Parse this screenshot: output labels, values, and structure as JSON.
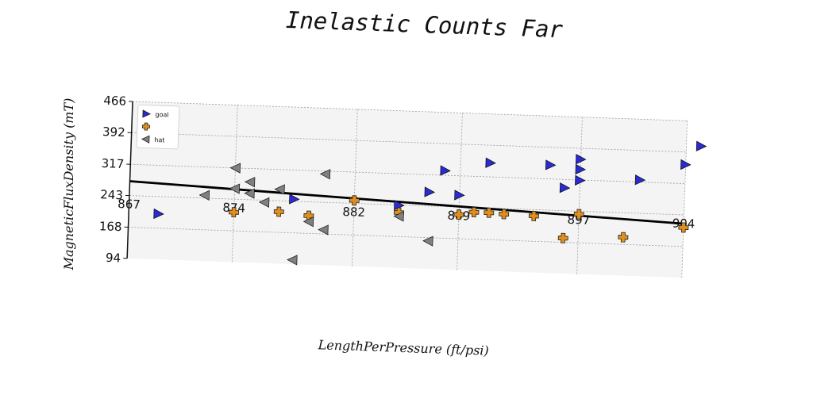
{
  "chart_data": {
    "type": "scatter",
    "title": "Inelastic Counts Far",
    "xlabel": "LengthPerPressure (ft/psi)",
    "ylabel": "MagneticFluxDensity (mT)",
    "x_ticks": [
      867,
      874,
      882,
      889,
      897,
      904
    ],
    "y_ticks": [
      94,
      168,
      243,
      317,
      392,
      466
    ],
    "xlim": [
      867,
      904
    ],
    "ylim": [
      94,
      466
    ],
    "grid": true,
    "legend_position": "top-left",
    "series": [
      {
        "name": "goal",
        "marker": "triangle-right",
        "color": "#2b2bd6",
        "x": [
          869,
          878,
          885,
          887,
          888,
          889,
          891,
          895,
          896,
          897,
          897,
          897,
          901,
          904,
          905
        ],
        "y": [
          202,
          248,
          242,
          276,
          328,
          271,
          350,
          350,
          297,
          316,
          366,
          342,
          322,
          362,
          407
        ]
      },
      {
        "name": "",
        "marker": "plus",
        "color": "#e08f1c",
        "x": [
          874,
          877,
          879,
          882,
          885,
          889,
          890,
          891,
          892,
          894,
          896,
          897,
          900,
          904
        ],
        "y": [
          212,
          217,
          210,
          250,
          225,
          225,
          232,
          232,
          230,
          228,
          178,
          236,
          185,
          213
        ]
      },
      {
        "name": "hat",
        "marker": "triangle-left",
        "color": "#808080",
        "x": [
          872,
          874,
          874,
          875,
          875,
          876,
          877,
          878,
          879,
          880,
          880,
          885,
          887
        ],
        "y": [
          250,
          317,
          268,
          285,
          258,
          238,
          270,
          104,
          196,
          178,
          310,
          216,
          160
        ]
      }
    ],
    "regression_line": {
      "x": [
        867,
        904
      ],
      "y": [
        277,
        222
      ]
    }
  }
}
